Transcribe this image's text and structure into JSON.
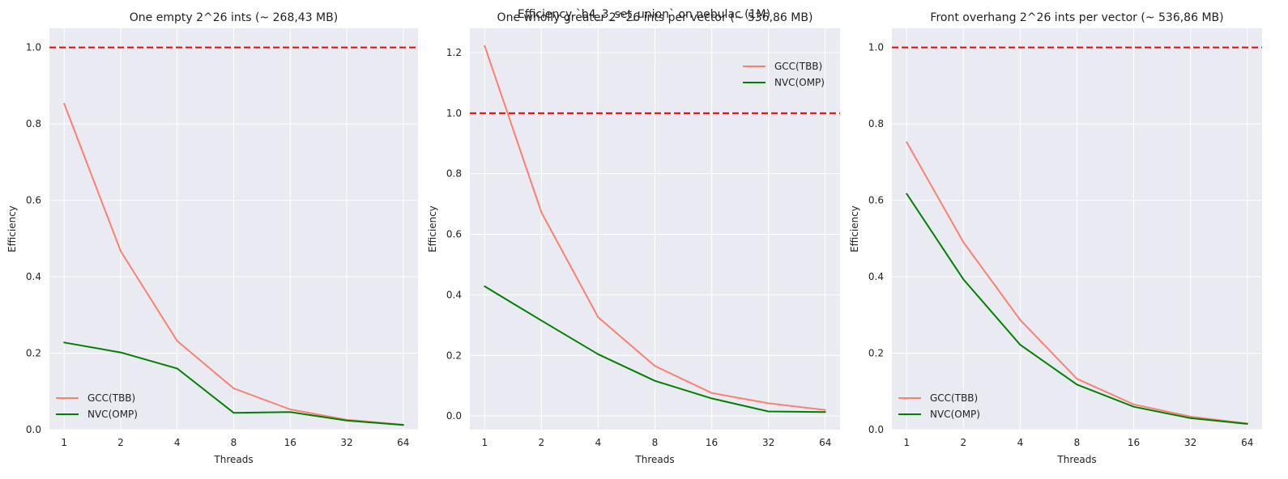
{
  "figure": {
    "suptitle": "Efficiency `b4_3_set_union` on nebulac (1M)"
  },
  "chart_data": [
    {
      "type": "line",
      "title": "One empty 2^26 ints (~ 268,43 MB)",
      "xlabel": "Threads",
      "ylabel": "Efficiency",
      "categories": [
        "1",
        "2",
        "4",
        "8",
        "16",
        "32",
        "64"
      ],
      "x_scale": "log2",
      "ylim": [
        0.0,
        1.05
      ],
      "yticks": [
        0.0,
        0.2,
        0.4,
        0.6,
        0.8,
        1.0
      ],
      "ytick_labels": [
        "0.0",
        "0.2",
        "0.4",
        "0.6",
        "0.8",
        "1.0"
      ],
      "grid": true,
      "legend_position": "lower-left",
      "reference_line": {
        "y": 1.0,
        "style": "dashed",
        "color": "#ff0000"
      },
      "series": [
        {
          "name": "GCC(TBB)",
          "color": "#fa8072",
          "values": [
            0.853,
            0.467,
            0.232,
            0.108,
            0.053,
            0.026,
            0.013
          ]
        },
        {
          "name": "NVC(OMP)",
          "color": "#008000",
          "values": [
            0.228,
            0.202,
            0.16,
            0.044,
            0.046,
            0.024,
            0.012
          ]
        }
      ]
    },
    {
      "type": "line",
      "title": "One wholly greater 2^26 ints per vector (~ 536,86 MB)",
      "xlabel": "Threads",
      "ylabel": "Efficiency",
      "categories": [
        "1",
        "2",
        "4",
        "8",
        "16",
        "32",
        "64"
      ],
      "x_scale": "log2",
      "ylim": [
        -0.045,
        1.28
      ],
      "yticks": [
        0.0,
        0.2,
        0.4,
        0.6,
        0.8,
        1.0,
        1.2
      ],
      "ytick_labels": [
        "0.0",
        "0.2",
        "0.4",
        "0.6",
        "0.8",
        "1.0",
        "1.2"
      ],
      "grid": true,
      "legend_position": "upper-right",
      "reference_line": {
        "y": 1.0,
        "style": "dashed",
        "color": "#ff0000"
      },
      "series": [
        {
          "name": "GCC(TBB)",
          "color": "#fa8072",
          "values": [
            1.222,
            0.672,
            0.326,
            0.165,
            0.076,
            0.042,
            0.02
          ]
        },
        {
          "name": "NVC(OMP)",
          "color": "#008000",
          "values": [
            0.428,
            0.315,
            0.204,
            0.116,
            0.058,
            0.015,
            0.013
          ]
        }
      ]
    },
    {
      "type": "line",
      "title": "Front overhang 2^26 ints per vector (~ 536,86 MB)",
      "xlabel": "Threads",
      "ylabel": "Efficiency",
      "categories": [
        "1",
        "2",
        "4",
        "8",
        "16",
        "32",
        "64"
      ],
      "x_scale": "log2",
      "ylim": [
        0.0,
        1.05
      ],
      "yticks": [
        0.0,
        0.2,
        0.4,
        0.6,
        0.8,
        1.0
      ],
      "ytick_labels": [
        "0.0",
        "0.2",
        "0.4",
        "0.6",
        "0.8",
        "1.0"
      ],
      "grid": true,
      "legend_position": "lower-left",
      "reference_line": {
        "y": 1.0,
        "style": "dashed",
        "color": "#ff0000"
      },
      "series": [
        {
          "name": "GCC(TBB)",
          "color": "#fa8072",
          "values": [
            0.752,
            0.49,
            0.287,
            0.133,
            0.066,
            0.034,
            0.016
          ]
        },
        {
          "name": "NVC(OMP)",
          "color": "#008000",
          "values": [
            0.617,
            0.393,
            0.222,
            0.118,
            0.06,
            0.03,
            0.015
          ]
        }
      ]
    }
  ]
}
